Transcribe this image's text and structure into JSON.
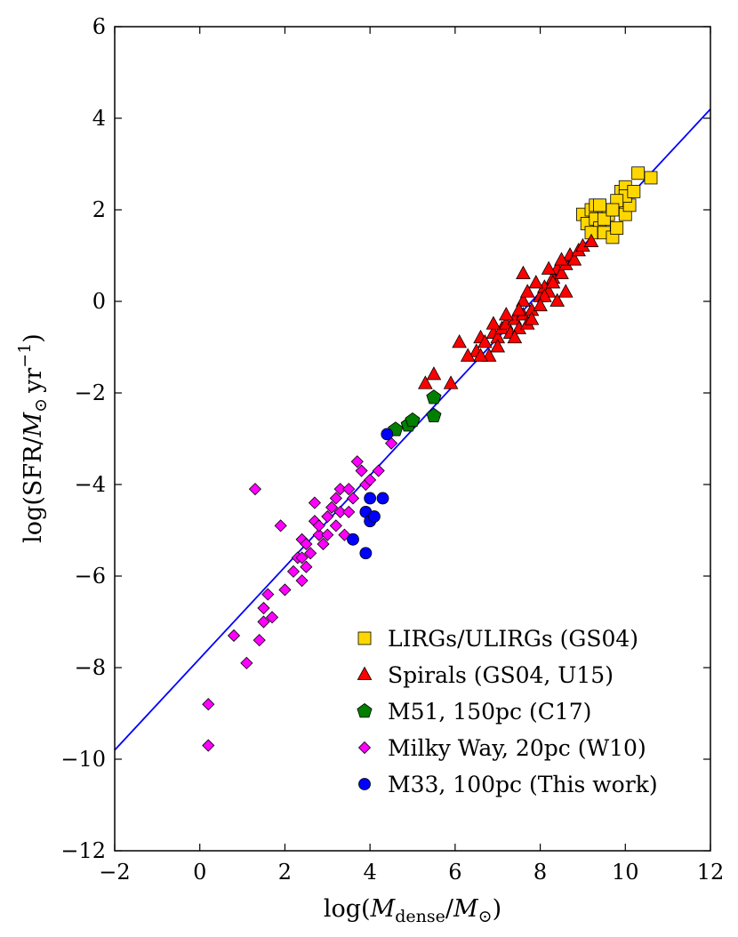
{
  "chart_data": {
    "type": "scatter",
    "title": "",
    "xlabel": "log(M_dense/M_⊙)",
    "xlabel_parts": {
      "pre": "log(",
      "sym": "M",
      "sub": "dense",
      "mid": "/",
      "sym2": "M",
      "sub2": "⊙",
      "post": ")"
    },
    "ylabel": "log(SFR/M_⊙ yr^-1)",
    "ylabel_parts": {
      "pre": "log(SFR/",
      "sym": "M",
      "sub": "⊙",
      "unit": "yr",
      "sup": "−1",
      "post": ")"
    },
    "xlim": [
      -2,
      12
    ],
    "ylim": [
      -12,
      6
    ],
    "xticks": [
      -2,
      0,
      2,
      4,
      6,
      8,
      10,
      12
    ],
    "xtick_labels": [
      "−2",
      "0",
      "2",
      "4",
      "6",
      "8",
      "10",
      "12"
    ],
    "yticks": [
      -12,
      -10,
      -8,
      -6,
      -4,
      -2,
      0,
      2,
      4,
      6
    ],
    "ytick_labels": [
      "−12",
      "−10",
      "−8",
      "−6",
      "−4",
      "−2",
      "0",
      "2",
      "4",
      "6"
    ],
    "legend_position": "lower-right",
    "fit_line": {
      "x": [
        -2,
        12
      ],
      "y": [
        -9.8,
        4.2
      ],
      "color": "#0000ff"
    },
    "series": [
      {
        "name": "LIRGs/ULIRGs (GS04)",
        "marker": "square",
        "color": "#ffd700",
        "points": [
          [
            9.0,
            1.9
          ],
          [
            9.1,
            1.7
          ],
          [
            9.2,
            2.0
          ],
          [
            9.3,
            1.8
          ],
          [
            9.3,
            2.1
          ],
          [
            9.4,
            1.6
          ],
          [
            9.5,
            1.5
          ],
          [
            9.6,
            1.9
          ],
          [
            9.6,
            2.0
          ],
          [
            9.7,
            1.4
          ],
          [
            9.8,
            1.6
          ],
          [
            9.9,
            2.4
          ],
          [
            10.0,
            2.5
          ],
          [
            10.0,
            1.9
          ],
          [
            10.1,
            2.1
          ],
          [
            10.0,
            2.3
          ],
          [
            10.2,
            2.4
          ],
          [
            10.3,
            2.8
          ],
          [
            10.6,
            2.7
          ],
          [
            9.8,
            2.2
          ],
          [
            9.5,
            1.8
          ],
          [
            9.2,
            1.5
          ],
          [
            9.4,
            2.1
          ],
          [
            9.7,
            2.0
          ]
        ]
      },
      {
        "name": "Spirals (GS04, U15)",
        "marker": "triangle",
        "color": "#ff0000",
        "points": [
          [
            5.3,
            -1.8
          ],
          [
            5.5,
            -1.6
          ],
          [
            5.9,
            -1.8
          ],
          [
            6.1,
            -0.9
          ],
          [
            6.5,
            -1.1
          ],
          [
            6.6,
            -0.8
          ],
          [
            6.7,
            -0.9
          ],
          [
            6.8,
            -1.2
          ],
          [
            6.9,
            -0.7
          ],
          [
            7.0,
            -0.8
          ],
          [
            7.1,
            -0.6
          ],
          [
            7.2,
            -0.5
          ],
          [
            7.3,
            -0.7
          ],
          [
            7.4,
            -0.4
          ],
          [
            7.5,
            -0.6
          ],
          [
            7.6,
            -0.3
          ],
          [
            7.7,
            -0.5
          ],
          [
            7.8,
            -0.2
          ],
          [
            7.6,
            0.0
          ],
          [
            7.8,
            -0.4
          ],
          [
            8.0,
            0.1
          ],
          [
            8.1,
            0.3
          ],
          [
            8.2,
            0.2
          ],
          [
            8.3,
            0.5
          ],
          [
            8.4,
            0.7
          ],
          [
            8.5,
            0.6
          ],
          [
            8.6,
            0.8
          ],
          [
            8.7,
            1.0
          ],
          [
            8.8,
            0.9
          ],
          [
            8.9,
            1.1
          ],
          [
            9.0,
            1.2
          ],
          [
            9.2,
            1.3
          ],
          [
            7.6,
            0.6
          ],
          [
            7.9,
            0.4
          ],
          [
            7.7,
            0.2
          ],
          [
            8.1,
            0.1
          ],
          [
            8.3,
            0.4
          ],
          [
            8.5,
            0.9
          ],
          [
            7.2,
            -0.3
          ],
          [
            6.9,
            -0.5
          ],
          [
            6.6,
            -1.2
          ],
          [
            7.4,
            -0.8
          ],
          [
            8.0,
            -0.1
          ],
          [
            8.6,
            0.2
          ],
          [
            8.2,
            0.7
          ],
          [
            6.3,
            -1.2
          ],
          [
            7.0,
            -1.0
          ],
          [
            7.5,
            -0.2
          ],
          [
            8.4,
            0.0
          ]
        ]
      },
      {
        "name": "M51, 150pc (C17)",
        "marker": "pentagon",
        "color": "#007f00",
        "points": [
          [
            4.6,
            -2.8
          ],
          [
            4.9,
            -2.7
          ],
          [
            5.0,
            -2.6
          ],
          [
            5.5,
            -2.1
          ],
          [
            5.5,
            -2.5
          ]
        ]
      },
      {
        "name": "Milky Way, 20pc (W10)",
        "marker": "diamond",
        "color": "#ff00ff",
        "points": [
          [
            0.2,
            -8.8
          ],
          [
            0.2,
            -9.7
          ],
          [
            0.8,
            -7.3
          ],
          [
            1.1,
            -7.9
          ],
          [
            1.3,
            -4.1
          ],
          [
            1.4,
            -7.4
          ],
          [
            1.5,
            -6.7
          ],
          [
            1.5,
            -7.0
          ],
          [
            1.6,
            -6.4
          ],
          [
            1.7,
            -6.9
          ],
          [
            1.9,
            -4.9
          ],
          [
            2.0,
            -6.3
          ],
          [
            2.2,
            -5.9
          ],
          [
            2.3,
            -5.6
          ],
          [
            2.4,
            -6.1
          ],
          [
            2.4,
            -5.2
          ],
          [
            2.5,
            -5.3
          ],
          [
            2.5,
            -5.8
          ],
          [
            2.6,
            -5.5
          ],
          [
            2.7,
            -4.4
          ],
          [
            2.7,
            -4.8
          ],
          [
            2.8,
            -5.1
          ],
          [
            2.9,
            -5.3
          ],
          [
            3.0,
            -4.7
          ],
          [
            3.0,
            -5.1
          ],
          [
            3.1,
            -4.5
          ],
          [
            3.2,
            -4.3
          ],
          [
            3.2,
            -4.9
          ],
          [
            3.3,
            -4.1
          ],
          [
            3.3,
            -4.6
          ],
          [
            3.4,
            -5.1
          ],
          [
            3.5,
            -4.1
          ],
          [
            3.6,
            -4.3
          ],
          [
            3.7,
            -3.5
          ],
          [
            3.8,
            -3.7
          ],
          [
            3.9,
            -4.0
          ],
          [
            4.0,
            -3.9
          ],
          [
            4.2,
            -3.7
          ],
          [
            4.5,
            -3.1
          ],
          [
            2.4,
            -5.6
          ],
          [
            2.8,
            -4.9
          ],
          [
            3.5,
            -4.6
          ]
        ]
      },
      {
        "name": "M33, 100pc (This work)",
        "marker": "circle",
        "color": "#0000ff",
        "points": [
          [
            3.6,
            -5.2
          ],
          [
            3.9,
            -4.6
          ],
          [
            3.9,
            -5.5
          ],
          [
            4.0,
            -4.3
          ],
          [
            4.0,
            -4.8
          ],
          [
            4.1,
            -4.7
          ],
          [
            4.3,
            -4.3
          ],
          [
            4.4,
            -2.9
          ]
        ]
      }
    ]
  }
}
